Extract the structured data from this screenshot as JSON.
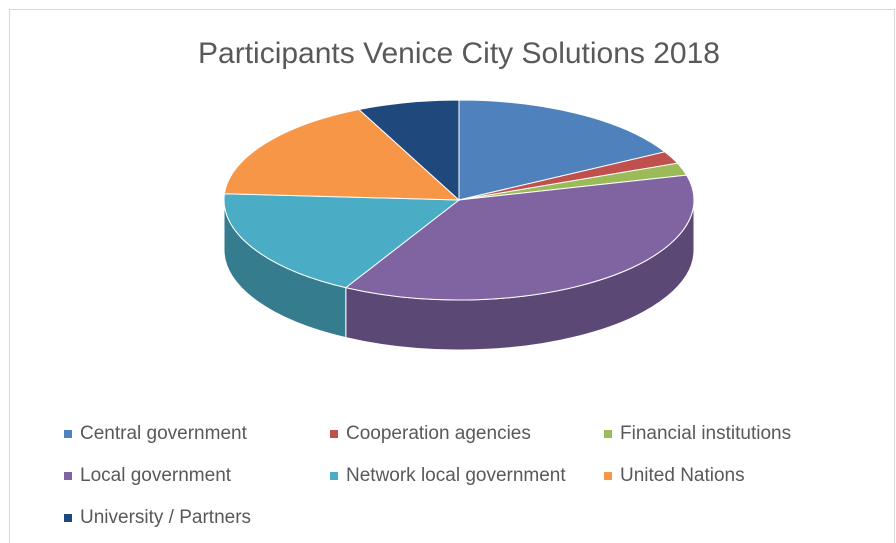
{
  "chart_data": {
    "type": "pie3d",
    "title": "Participants Venice City Solutions 2018",
    "categories": [
      "Central government",
      "Cooperation agencies",
      "Financial institutions",
      "Local government",
      "Network local government",
      "United Nations",
      "University / Partners"
    ],
    "values": [
      17,
      2,
      2,
      37,
      18,
      17,
      7
    ],
    "colors": [
      "#4f81bd",
      "#c0504d",
      "#9bbb59",
      "#8064a2",
      "#4bacc6",
      "#f79646",
      "#1f497d"
    ],
    "legend": "bottom"
  }
}
